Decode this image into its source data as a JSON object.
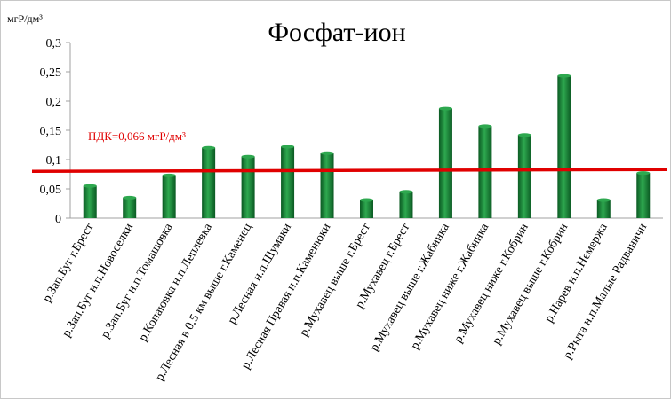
{
  "chart_data": {
    "type": "bar",
    "title": "Фосфат-ион",
    "ylabel": "мгР/дм³",
    "xlabel": "",
    "ylim": [
      0,
      0.3
    ],
    "yticks": [
      "0",
      "0,05",
      "0,1",
      "0,15",
      "0,2",
      "0,25",
      "0,3"
    ],
    "grid": false,
    "categories": [
      "р.Зап.Буг г.Брест",
      "р.Зап.Буг н.п.Новоселки",
      "р.Зап.Буг н.п.Томашовка",
      "р.Копаювка н.п.Леплевка",
      "р.Лесная в 0,5 км выше г.Каменец",
      "р.Лесная н.п.Шумаки",
      "р.Лесная Правая н.п.Каменюки",
      "р.Мухавец выше г.Брест",
      "р.Мухавец г.Брест",
      "р.Мухавец выше г.Жабинка",
      "р.Мухавец ниже г.Жабинка",
      "р.Мухавец ниже г.Кобрин",
      "р.Мухавец выше г.Кобрин",
      "р.Нарев н.п.Немержа",
      "р.Рыта н.п.Малые Радваничи"
    ],
    "values": [
      0.055,
      0.035,
      0.073,
      0.12,
      0.105,
      0.122,
      0.111,
      0.031,
      0.045,
      0.187,
      0.157,
      0.142,
      0.243,
      0.031,
      0.077
    ],
    "annotation": {
      "label": "ПДК=0,066 мгР/дм³",
      "value_at_start": 0.08,
      "value_at_end": 0.083
    },
    "colors": {
      "bar_light": "#2ea84f",
      "bar_dark": "#0b5a23",
      "limit_line": "#e00000",
      "limit_text": "#e00000"
    }
  }
}
